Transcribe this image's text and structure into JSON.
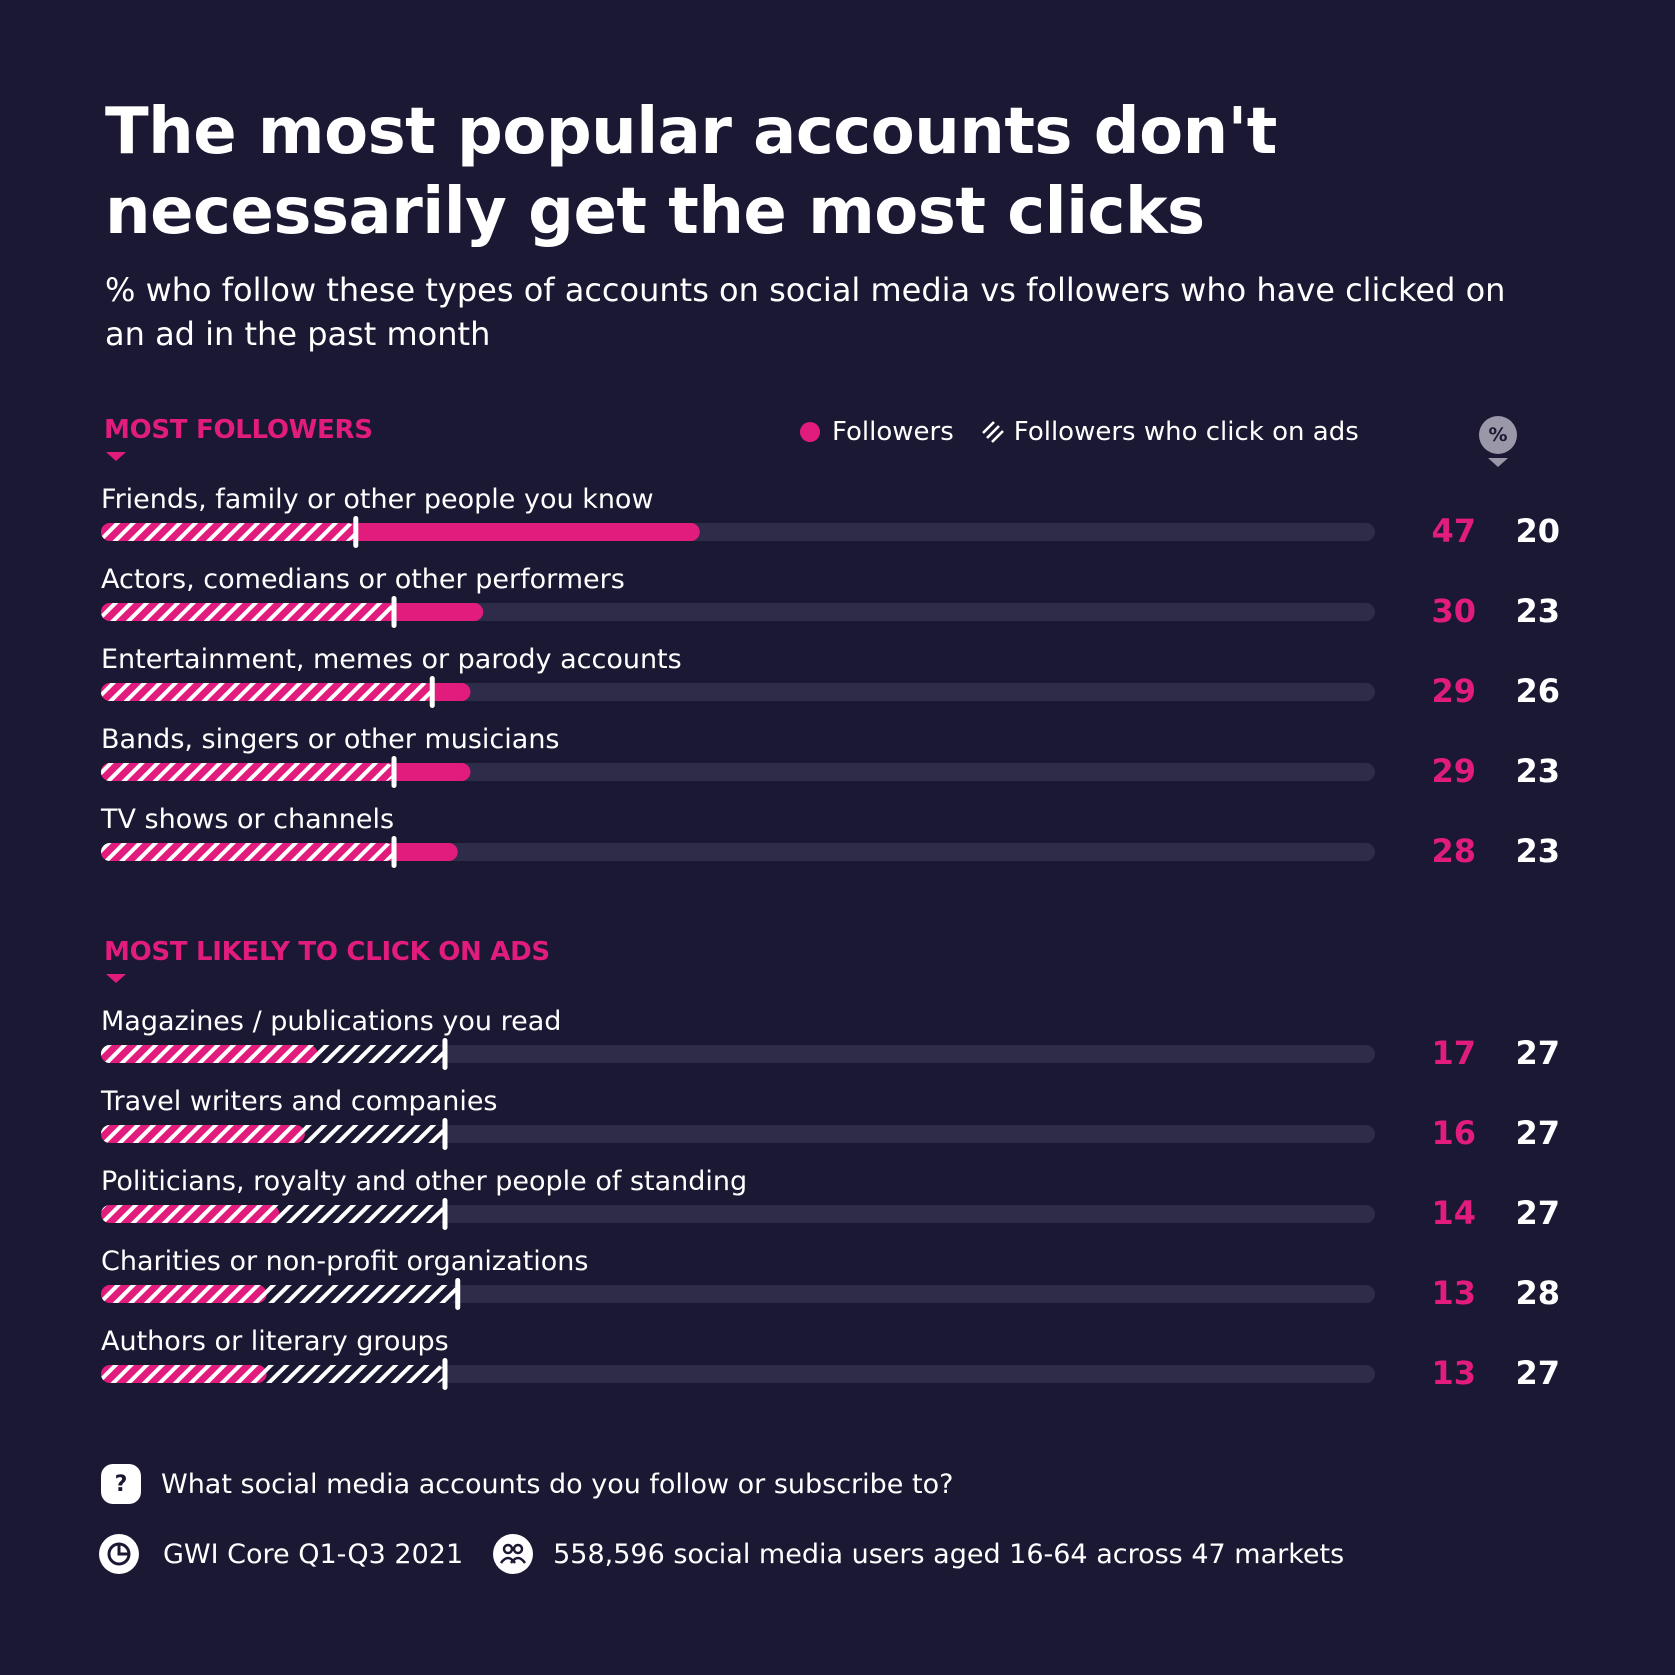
{
  "title": "The most popular accounts don't necessarily get the most clicks",
  "subtitle": "% who follow these types of accounts on social media vs followers who have clicked on an ad in the past month",
  "legend": {
    "followers": "Followers",
    "clickers": "Followers who click on ads",
    "pct_symbol": "%"
  },
  "colors": {
    "background": "#1b1833",
    "accent": "#e11c7d",
    "track": "#2e2c48",
    "text": "#ffffff"
  },
  "chart_data": {
    "type": "bar",
    "axis_max": 100,
    "units": "%",
    "sections": [
      {
        "label": "MOST FOLLOWERS",
        "rows": [
          {
            "label": "Friends, family or other people you know",
            "followers": 47,
            "click": 20
          },
          {
            "label": "Actors, comedians or other performers",
            "followers": 30,
            "click": 23
          },
          {
            "label": "Entertainment, memes or parody accounts",
            "followers": 29,
            "click": 26
          },
          {
            "label": "Bands, singers or other musicians",
            "followers": 29,
            "click": 23
          },
          {
            "label": "TV shows or channels",
            "followers": 28,
            "click": 23
          }
        ]
      },
      {
        "label": "MOST LIKELY TO CLICK ON ADS",
        "rows": [
          {
            "label": "Magazines / publications you read",
            "followers": 17,
            "click": 27
          },
          {
            "label": "Travel writers and companies",
            "followers": 16,
            "click": 27
          },
          {
            "label": "Politicians, royalty and other people of standing",
            "followers": 14,
            "click": 27
          },
          {
            "label": "Charities or non-profit organizations",
            "followers": 13,
            "click": 28
          },
          {
            "label": "Authors or literary groups",
            "followers": 13,
            "click": 27
          }
        ]
      }
    ]
  },
  "footer": {
    "question_mark": "?",
    "question": "What social media accounts do you follow or subscribe to?",
    "source": "GWI Core Q1-Q3 2021",
    "sample": "558,596 social media users aged 16-64 across 47 markets"
  }
}
